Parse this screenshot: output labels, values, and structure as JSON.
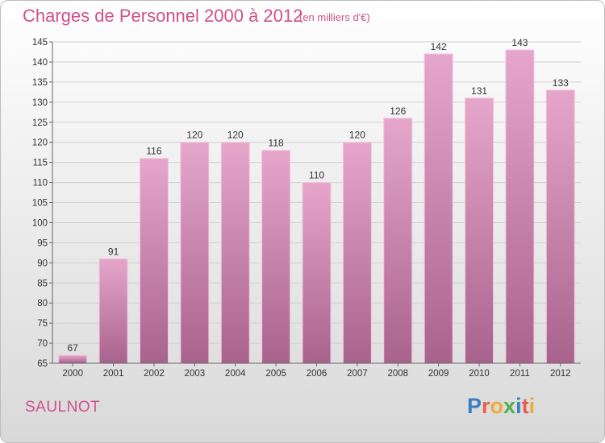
{
  "header": {
    "title": "Charges de Personnel 2000 à 2012",
    "unit": "(en milliers d'€)"
  },
  "footer": {
    "commune": "SAULNOT",
    "logo": "Proxiti"
  },
  "colors": {
    "bar_top": "#e6a6cb",
    "bar_bottom": "#a8638c",
    "title": "#d0508c"
  },
  "chart_data": {
    "type": "bar",
    "title": "Charges de Personnel 2000 à 2012",
    "subtitle": "(en milliers d'€)",
    "xlabel": "",
    "ylabel": "",
    "ylim": [
      65,
      145
    ],
    "ytick_step": 5,
    "grid": true,
    "categories": [
      "2000",
      "2001",
      "2002",
      "2003",
      "2004",
      "2005",
      "2006",
      "2007",
      "2008",
      "2009",
      "2010",
      "2011",
      "2012"
    ],
    "values": [
      67,
      91,
      116,
      120,
      120,
      118,
      110,
      120,
      126,
      142,
      131,
      143,
      133
    ]
  }
}
